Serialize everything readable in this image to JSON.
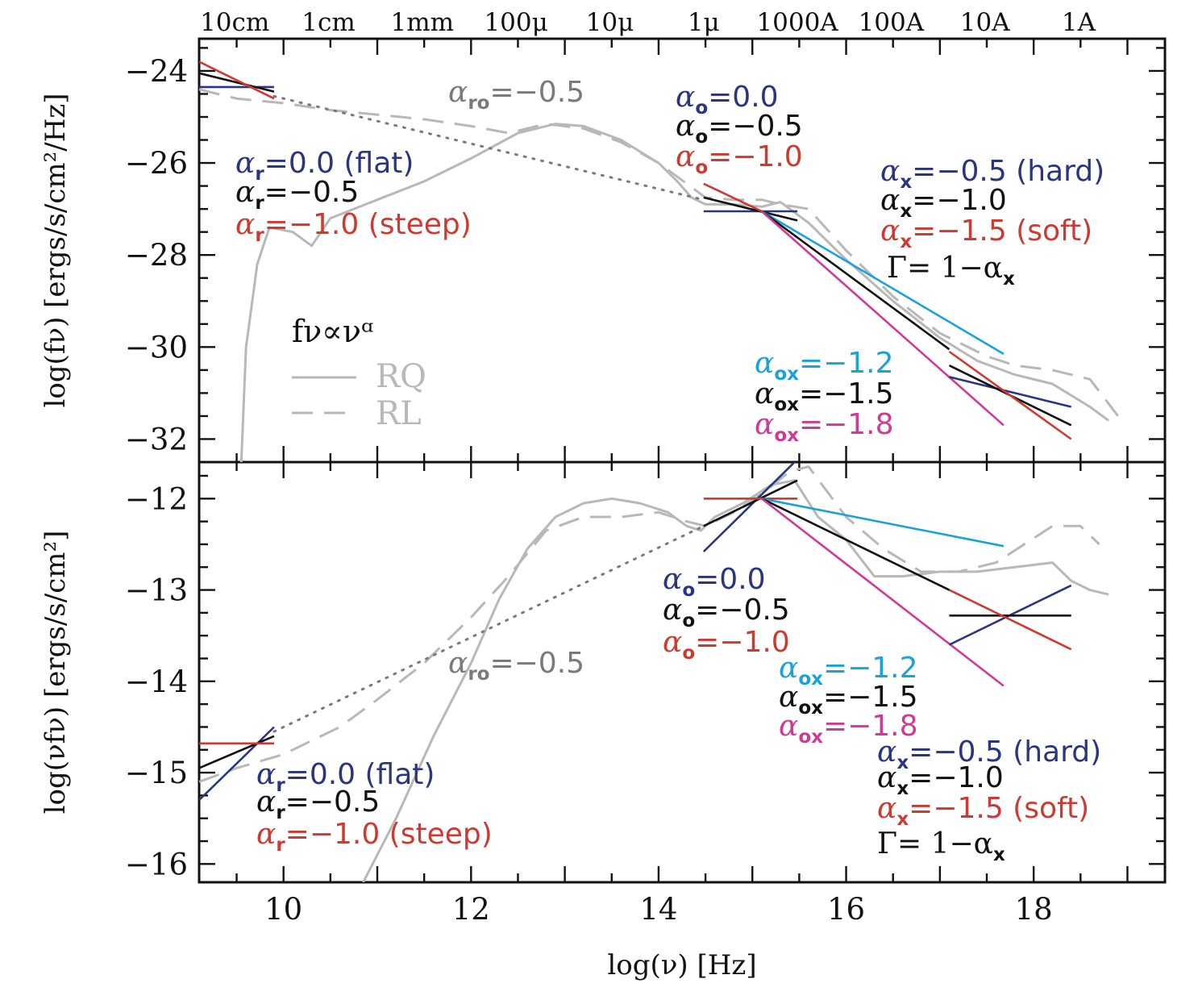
{
  "colors": {
    "flat": "#2a3580",
    "mid": "#111111",
    "steep": "#cc3b32",
    "ox_hard": "#1aa3d9",
    "ox_soft": "#cf3a93",
    "sed": "#b8b8b8",
    "ro": "#7a7a7a"
  },
  "chart_data": [
    {
      "type": "line",
      "panel": "top",
      "xlabel": "",
      "ylabel": "log(fν) [ergs/s/cm²/Hz]",
      "xlim": [
        9.1,
        19.4
      ],
      "ylim": [
        -32.5,
        -23.3
      ],
      "x_ticks": [],
      "y_ticks": [
        -24,
        -26,
        -28,
        -30,
        -32
      ],
      "y_tick_labels": [
        "−24",
        "−26",
        "−28",
        "−30",
        "−32"
      ],
      "top_axis_ticks": [
        {
          "x": 9.48,
          "label": "10cm"
        },
        {
          "x": 10.48,
          "label": "1cm"
        },
        {
          "x": 11.48,
          "label": "1mm"
        },
        {
          "x": 12.48,
          "label": "100μ"
        },
        {
          "x": 13.48,
          "label": "10μ"
        },
        {
          "x": 14.48,
          "label": "1μ"
        },
        {
          "x": 15.48,
          "label": "1000A"
        },
        {
          "x": 16.48,
          "label": "100A"
        },
        {
          "x": 17.48,
          "label": "10A"
        },
        {
          "x": 18.48,
          "label": "1A"
        }
      ],
      "legend": {
        "heading": "fν∝νᵅ",
        "entries": [
          "RQ",
          "RL"
        ]
      },
      "series": [
        {
          "name": "RQ",
          "style": "solid",
          "color": "#b8b8b8",
          "x": [
            9.55,
            9.6,
            9.72,
            9.85,
            10.1,
            10.3,
            10.5,
            11.0,
            11.5,
            12.0,
            12.5,
            12.9,
            13.2,
            13.6,
            14.0,
            14.2,
            14.35,
            14.5,
            14.8,
            15.1,
            15.3,
            15.6,
            16.0,
            16.5,
            17.0,
            17.4,
            17.8,
            18.2,
            18.6,
            18.8
          ],
          "y": [
            -32.5,
            -30.0,
            -28.2,
            -27.4,
            -27.5,
            -27.8,
            -27.2,
            -26.8,
            -26.4,
            -25.9,
            -25.35,
            -25.15,
            -25.2,
            -25.5,
            -26.0,
            -26.4,
            -26.75,
            -26.9,
            -26.9,
            -26.95,
            -26.85,
            -27.3,
            -28.1,
            -29.0,
            -29.8,
            -30.3,
            -30.6,
            -30.8,
            -31.3,
            -31.6
          ]
        },
        {
          "name": "RL",
          "style": "dashed",
          "color": "#b8b8b8",
          "x": [
            9.1,
            9.5,
            10.0,
            10.5,
            11.0,
            11.5,
            12.0,
            12.4,
            12.8,
            13.2,
            13.6,
            14.0,
            14.3,
            14.5,
            14.8,
            15.1,
            15.3,
            15.6,
            16.0,
            16.5,
            17.0,
            17.5,
            17.8,
            18.2,
            18.6,
            18.9
          ],
          "y": [
            -24.4,
            -24.6,
            -24.7,
            -24.85,
            -24.95,
            -25.05,
            -25.2,
            -25.35,
            -25.15,
            -25.25,
            -25.55,
            -26.0,
            -26.45,
            -26.75,
            -26.8,
            -26.8,
            -26.9,
            -27.0,
            -27.9,
            -28.9,
            -29.7,
            -30.2,
            -30.4,
            -30.5,
            -30.7,
            -31.5
          ]
        },
        {
          "name": "αro=−0.5",
          "style": "dotted",
          "color": "#7a7a7a",
          "x": [
            9.9,
            14.48
          ],
          "y": [
            -24.55,
            -26.8
          ]
        },
        {
          "name": "αr=0.0",
          "color": "#2a3580",
          "x": [
            9.1,
            9.9
          ],
          "y": [
            -24.35,
            -24.35
          ]
        },
        {
          "name": "αr=−0.5",
          "color": "#111111",
          "x": [
            9.1,
            9.9
          ],
          "y": [
            -24.05,
            -24.45
          ]
        },
        {
          "name": "αr=−1.0",
          "color": "#cc3b32",
          "x": [
            9.1,
            9.9
          ],
          "y": [
            -23.8,
            -24.6
          ]
        },
        {
          "name": "αo=0.0",
          "color": "#2a3580",
          "x": [
            14.48,
            15.48
          ],
          "y": [
            -27.05,
            -27.05
          ]
        },
        {
          "name": "αo=−0.5",
          "color": "#111111",
          "x": [
            14.48,
            15.48
          ],
          "y": [
            -26.75,
            -27.25
          ]
        },
        {
          "name": "αo=−1.0",
          "color": "#cc3b32",
          "x": [
            14.48,
            15.1
          ],
          "y": [
            -26.45,
            -27.05
          ]
        },
        {
          "name": "αox=−1.2",
          "color": "#1aa3d9",
          "x": [
            15.1,
            17.68
          ],
          "y": [
            -27.05,
            -30.15
          ]
        },
        {
          "name": "αox=−1.5",
          "color": "#111111",
          "x": [
            15.1,
            17.1
          ],
          "y": [
            -27.05,
            -30.05
          ]
        },
        {
          "name": "αox=−1.8",
          "color": "#cf3a93",
          "x": [
            15.1,
            17.68
          ],
          "y": [
            -27.05,
            -31.7
          ]
        },
        {
          "name": "αx=−0.5",
          "color": "#2a3580",
          "x": [
            17.1,
            18.4
          ],
          "y": [
            -30.65,
            -31.3
          ]
        },
        {
          "name": "αx=−1.0",
          "color": "#111111",
          "x": [
            17.1,
            18.4
          ],
          "y": [
            -30.4,
            -31.7
          ]
        },
        {
          "name": "αx=−1.5",
          "color": "#cc3b32",
          "x": [
            17.1,
            18.4
          ],
          "y": [
            -30.1,
            -32.0
          ]
        }
      ]
    },
    {
      "type": "line",
      "panel": "bottom",
      "xlabel": "log(ν) [Hz]",
      "ylabel": "log(νfν) [ergs/s/cm²]",
      "xlim": [
        9.1,
        19.4
      ],
      "ylim": [
        -16.2,
        -11.6
      ],
      "x_ticks": [
        10,
        12,
        14,
        16,
        18
      ],
      "y_ticks": [
        -12,
        -13,
        -14,
        -15,
        -16
      ],
      "y_tick_labels": [
        "−12",
        "−13",
        "−14",
        "−15",
        "−16"
      ],
      "series": [
        {
          "name": "RQ",
          "style": "solid",
          "color": "#b8b8b8",
          "x": [
            10.85,
            11.2,
            11.6,
            12.0,
            12.3,
            12.6,
            12.9,
            13.2,
            13.5,
            13.8,
            14.1,
            14.3,
            14.45,
            14.6,
            14.9,
            15.2,
            15.45,
            15.7,
            16.0,
            16.3,
            16.6,
            17.0,
            17.4,
            17.8,
            18.2,
            18.4,
            18.6,
            18.8
          ],
          "y": [
            -16.2,
            -15.5,
            -14.6,
            -13.8,
            -13.1,
            -12.55,
            -12.2,
            -12.05,
            -12.0,
            -12.05,
            -12.15,
            -12.3,
            -12.35,
            -12.2,
            -12.05,
            -11.85,
            -11.8,
            -12.2,
            -12.45,
            -12.85,
            -12.85,
            -12.8,
            -12.8,
            -12.75,
            -12.7,
            -12.9,
            -13.0,
            -13.05
          ]
        },
        {
          "name": "RL",
          "style": "dashed",
          "color": "#b8b8b8",
          "x": [
            9.1,
            9.5,
            10.0,
            10.3,
            10.6,
            11.0,
            11.5,
            12.0,
            12.4,
            12.8,
            13.2,
            13.6,
            14.0,
            14.3,
            14.5,
            14.8,
            15.1,
            15.4,
            15.6,
            16.0,
            16.4,
            16.8,
            17.2,
            17.6,
            17.9,
            18.2,
            18.5,
            18.7
          ],
          "y": [
            -15.1,
            -14.95,
            -14.8,
            -14.65,
            -14.5,
            -14.2,
            -13.8,
            -13.3,
            -12.85,
            -12.35,
            -12.2,
            -12.2,
            -12.15,
            -12.25,
            -12.3,
            -12.15,
            -11.95,
            -11.7,
            -11.65,
            -12.2,
            -12.55,
            -12.8,
            -12.8,
            -12.7,
            -12.5,
            -12.3,
            -12.3,
            -12.5
          ]
        },
        {
          "name": "αro=−0.5",
          "style": "dotted",
          "color": "#7a7a7a",
          "x": [
            9.9,
            14.48
          ],
          "y": [
            -14.55,
            -12.3
          ]
        },
        {
          "name": "αr=0.0",
          "color": "#2a3580",
          "x": [
            9.1,
            9.9
          ],
          "y": [
            -15.3,
            -14.5
          ]
        },
        {
          "name": "αr=−0.5",
          "color": "#111111",
          "x": [
            9.1,
            9.9
          ],
          "y": [
            -14.95,
            -14.6
          ]
        },
        {
          "name": "αr=−1.0",
          "color": "#cc3b32",
          "x": [
            9.1,
            9.9
          ],
          "y": [
            -14.68,
            -14.68
          ]
        },
        {
          "name": "αo=0.0",
          "color": "#2a3580",
          "x": [
            14.48,
            15.48
          ],
          "y": [
            -12.58,
            -11.57
          ]
        },
        {
          "name": "αo=−0.5",
          "color": "#111111",
          "x": [
            14.48,
            15.48
          ],
          "y": [
            -12.3,
            -11.8
          ]
        },
        {
          "name": "αo=−1.0",
          "color": "#cc3b32",
          "x": [
            14.48,
            15.48
          ],
          "y": [
            -12.0,
            -12.0
          ]
        },
        {
          "name": "αox=−1.2",
          "color": "#1aa3d9",
          "x": [
            15.1,
            17.68
          ],
          "y": [
            -12.0,
            -12.52
          ]
        },
        {
          "name": "αox=−1.5",
          "color": "#111111",
          "x": [
            15.1,
            17.1
          ],
          "y": [
            -12.0,
            -13.0
          ]
        },
        {
          "name": "αox=−1.8",
          "color": "#cf3a93",
          "x": [
            15.1,
            17.68
          ],
          "y": [
            -12.0,
            -14.05
          ]
        },
        {
          "name": "αx=−0.5",
          "color": "#2a3580",
          "x": [
            17.1,
            18.4
          ],
          "y": [
            -13.6,
            -12.95
          ]
        },
        {
          "name": "αx=−1.0",
          "color": "#111111",
          "x": [
            17.1,
            18.4
          ],
          "y": [
            -13.28,
            -13.28
          ]
        },
        {
          "name": "αx=−1.5",
          "color": "#cc3b32",
          "x": [
            17.1,
            18.4
          ],
          "y": [
            -13.0,
            -13.65
          ]
        }
      ]
    }
  ],
  "annotations": {
    "top": {
      "ro": {
        "sym": "α",
        "sub": "ro",
        "text": "=−0.5"
      },
      "r_flat": {
        "sym": "α",
        "sub": "r",
        "text": "=0.0  (flat)"
      },
      "r_mid": {
        "sym": "α",
        "sub": "r",
        "text": "=−0.5"
      },
      "r_steep": {
        "sym": "α",
        "sub": "r",
        "text": "=−1.0 (steep)"
      },
      "o_flat": {
        "sym": "α",
        "sub": "o",
        "text": "=0.0"
      },
      "o_mid": {
        "sym": "α",
        "sub": "o",
        "text": "=−0.5"
      },
      "o_steep": {
        "sym": "α",
        "sub": "o",
        "text": "=−1.0"
      },
      "x_hard": {
        "sym": "α",
        "sub": "x",
        "text": "=−0.5 (hard)"
      },
      "x_mid": {
        "sym": "α",
        "sub": "x",
        "text": "=−1.0"
      },
      "x_soft": {
        "sym": "α",
        "sub": "x",
        "text": "=−1.5 (soft)"
      },
      "gamma": {
        "pre": "Γ=  1−α",
        "sub": "x"
      },
      "ox_hard": {
        "sym": "α",
        "sub": "ox",
        "text": "=−1.2"
      },
      "ox_mid": {
        "sym": "α",
        "sub": "ox",
        "text": "=−1.5"
      },
      "ox_soft": {
        "sym": "α",
        "sub": "ox",
        "text": "=−1.8"
      }
    },
    "bottom": {
      "ro": {
        "sym": "α",
        "sub": "ro",
        "text": "=−0.5"
      },
      "r_flat": {
        "sym": "α",
        "sub": "r",
        "text": "=0.0  (flat)"
      },
      "r_mid": {
        "sym": "α",
        "sub": "r",
        "text": "=−0.5"
      },
      "r_steep": {
        "sym": "α",
        "sub": "r",
        "text": "=−1.0 (steep)"
      },
      "o_flat": {
        "sym": "α",
        "sub": "o",
        "text": "=0.0"
      },
      "o_mid": {
        "sym": "α",
        "sub": "o",
        "text": "=−0.5"
      },
      "o_steep": {
        "sym": "α",
        "sub": "o",
        "text": "=−1.0"
      },
      "ox_hard": {
        "sym": "α",
        "sub": "ox",
        "text": "=−1.2"
      },
      "ox_mid": {
        "sym": "α",
        "sub": "ox",
        "text": "=−1.5"
      },
      "ox_soft": {
        "sym": "α",
        "sub": "ox",
        "text": "=−1.8"
      },
      "x_hard": {
        "sym": "α",
        "sub": "x",
        "text": "=−0.5 (hard)"
      },
      "x_mid": {
        "sym": "α",
        "sub": "x",
        "text": "=−1.0"
      },
      "x_soft": {
        "sym": "α",
        "sub": "x",
        "text": "=−1.5 (soft)"
      },
      "gamma": {
        "pre": "Γ=  1−α",
        "sub": "x"
      }
    }
  }
}
